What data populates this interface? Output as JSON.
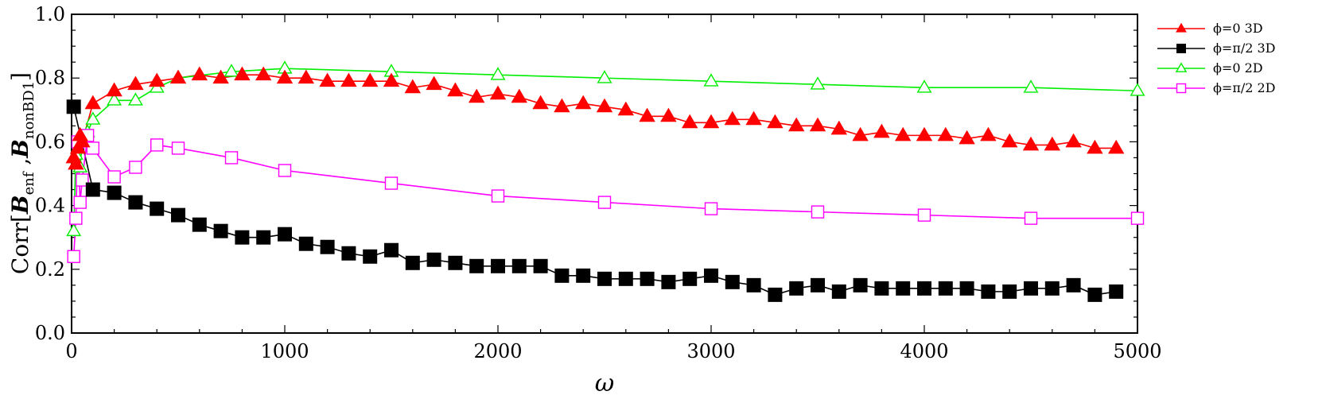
{
  "chart_data": {
    "type": "line",
    "title": "",
    "xlabel": "ω",
    "ylabel": "Corr[B_enf, B_nonBD1]",
    "ylabel_parts": {
      "prefix": "Corr[",
      "b1": "B",
      "sub1": "enf",
      "sep": " ,",
      "b2": "B",
      "sub2": "nonBD1",
      "suffix": "]"
    },
    "xlim": [
      0,
      5000
    ],
    "ylim": [
      0,
      1.0
    ],
    "xticks": [
      0,
      1000,
      2000,
      3000,
      4000,
      5000
    ],
    "yticks": [
      0.0,
      0.2,
      0.4,
      0.6,
      0.8,
      1.0
    ],
    "xtick_labels": [
      "0",
      "1000",
      "2000",
      "3000",
      "4000",
      "5000"
    ],
    "ytick_labels": [
      "0.0",
      "0.2",
      "0.4",
      "0.6",
      "0.8",
      "1.0"
    ],
    "grid": false,
    "legend_position": "right",
    "series": [
      {
        "name": "ϕ=0 3D",
        "color": "#ff0000",
        "marker": "triangle",
        "filled": true,
        "x": [
          10,
          20,
          30,
          40,
          50,
          100,
          200,
          300,
          400,
          500,
          600,
          700,
          800,
          900,
          1000,
          1100,
          1200,
          1300,
          1400,
          1500,
          1600,
          1700,
          1800,
          1900,
          2000,
          2100,
          2200,
          2300,
          2400,
          2500,
          2600,
          2700,
          2800,
          2900,
          3000,
          3100,
          3200,
          3300,
          3400,
          3500,
          3600,
          3700,
          3800,
          3900,
          4000,
          4100,
          4200,
          4300,
          4400,
          4500,
          4600,
          4700,
          4800,
          4900
        ],
        "y": [
          0.55,
          0.53,
          0.58,
          0.62,
          0.6,
          0.72,
          0.76,
          0.78,
          0.79,
          0.8,
          0.81,
          0.8,
          0.81,
          0.81,
          0.8,
          0.8,
          0.79,
          0.79,
          0.79,
          0.79,
          0.77,
          0.78,
          0.76,
          0.74,
          0.75,
          0.74,
          0.72,
          0.71,
          0.72,
          0.71,
          0.7,
          0.68,
          0.68,
          0.66,
          0.66,
          0.67,
          0.67,
          0.66,
          0.65,
          0.65,
          0.64,
          0.62,
          0.63,
          0.62,
          0.62,
          0.62,
          0.61,
          0.62,
          0.6,
          0.59,
          0.59,
          0.6,
          0.58,
          0.58
        ]
      },
      {
        "name": "ϕ=π/2 3D",
        "color": "#000000",
        "marker": "square",
        "filled": true,
        "x": [
          10,
          100,
          200,
          300,
          400,
          500,
          600,
          700,
          800,
          900,
          1000,
          1100,
          1200,
          1300,
          1400,
          1500,
          1600,
          1700,
          1800,
          1900,
          2000,
          2100,
          2200,
          2300,
          2400,
          2500,
          2600,
          2700,
          2800,
          2900,
          3000,
          3100,
          3200,
          3300,
          3400,
          3500,
          3600,
          3700,
          3800,
          3900,
          4000,
          4100,
          4200,
          4300,
          4400,
          4500,
          4600,
          4700,
          4800,
          4900
        ],
        "y": [
          0.71,
          0.45,
          0.44,
          0.41,
          0.39,
          0.37,
          0.34,
          0.32,
          0.3,
          0.3,
          0.31,
          0.28,
          0.27,
          0.25,
          0.24,
          0.26,
          0.22,
          0.23,
          0.22,
          0.21,
          0.21,
          0.21,
          0.21,
          0.18,
          0.18,
          0.17,
          0.17,
          0.17,
          0.16,
          0.17,
          0.18,
          0.16,
          0.15,
          0.12,
          0.14,
          0.15,
          0.13,
          0.15,
          0.14,
          0.14,
          0.14,
          0.14,
          0.14,
          0.13,
          0.13,
          0.14,
          0.14,
          0.15,
          0.12,
          0.13
        ]
      },
      {
        "name": "ϕ=0 2D",
        "color": "#00ee00",
        "marker": "triangle",
        "filled": false,
        "x": [
          10,
          20,
          30,
          40,
          50,
          75,
          100,
          200,
          300,
          400,
          500,
          750,
          1000,
          1500,
          2000,
          2500,
          3000,
          3500,
          4000,
          4500,
          5000
        ],
        "y": [
          0.32,
          0.56,
          0.58,
          0.52,
          0.6,
          0.63,
          0.67,
          0.73,
          0.73,
          0.77,
          0.8,
          0.82,
          0.83,
          0.82,
          0.81,
          0.8,
          0.79,
          0.78,
          0.77,
          0.77,
          0.76
        ]
      },
      {
        "name": "ϕ=π/2 2D",
        "color": "#ff00ff",
        "marker": "square",
        "filled": false,
        "x": [
          10,
          20,
          30,
          40,
          50,
          75,
          100,
          200,
          300,
          400,
          500,
          750,
          1000,
          1500,
          2000,
          2500,
          3000,
          3500,
          4000,
          4500,
          5000
        ],
        "y": [
          0.24,
          0.36,
          0.6,
          0.41,
          0.48,
          0.62,
          0.58,
          0.49,
          0.52,
          0.59,
          0.58,
          0.55,
          0.51,
          0.47,
          0.43,
          0.41,
          0.39,
          0.38,
          0.37,
          0.36,
          0.36
        ]
      }
    ]
  }
}
